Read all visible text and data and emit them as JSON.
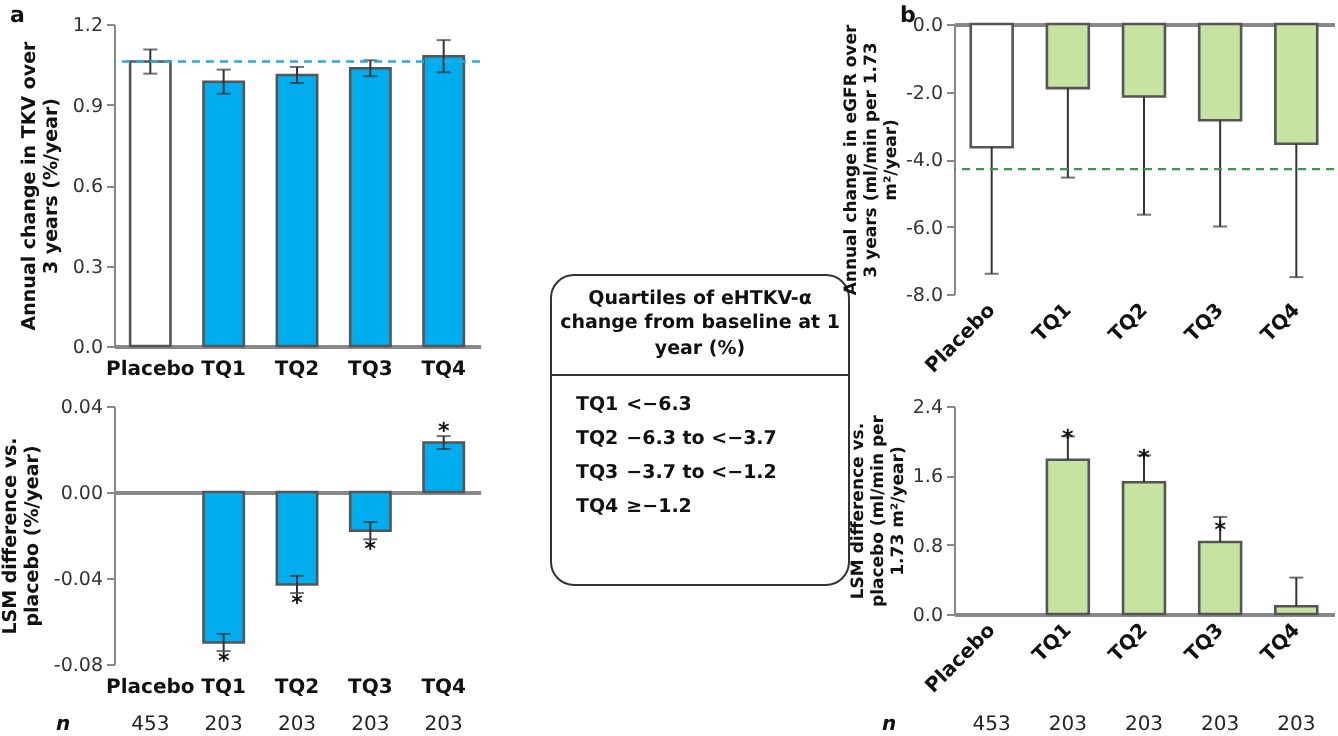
{
  "chart_data": [
    {
      "type": "bar",
      "title": "a",
      "ylabel": "Annual change in TKV over 3 years (%/year)",
      "categories": [
        "Placebo",
        "TQ1",
        "TQ2",
        "TQ3",
        "TQ4"
      ],
      "values": [
        1.06,
        0.985,
        1.01,
        1.035,
        1.08
      ],
      "colors": [
        "#ffffff",
        "#00aeef",
        "#00aeef",
        "#00aeef",
        "#00aeef"
      ],
      "errors": [
        0.045,
        0.045,
        0.03,
        0.03,
        0.06
      ],
      "ylim": [
        0,
        1.2
      ],
      "yticks": [
        {
          "value": 0,
          "label": "0.0"
        },
        0.3,
        0.6,
        0.9,
        1.2
      ],
      "ref_lines": [
        {
          "axis": "y",
          "value": 1.06,
          "color": "#29abe2",
          "line_style": "dashed"
        }
      ]
    },
    {
      "type": "bar",
      "ylabel": "LSM difference vs. placebo (%/year)",
      "categories": [
        "Placebo",
        "TQ1",
        "TQ2",
        "TQ3",
        "TQ4"
      ],
      "values": [
        0,
        -0.07,
        -0.043,
        -0.018,
        0.023
      ],
      "colors": [
        "#ffffff",
        "#00aeef",
        "#00aeef",
        "#00aeef",
        "#00aeef"
      ],
      "errors": [
        null,
        0.004,
        0.004,
        0.004,
        0.003
      ],
      "ylim": [
        -0.08,
        0.04
      ],
      "yticks": [
        -0.08,
        -0.04,
        {
          "value": 0,
          "label": "0.00"
        },
        0.04
      ],
      "annotations": [
        {
          "text": "*",
          "x": "TQ1",
          "y": -0.077
        },
        {
          "text": "*",
          "x": "TQ2",
          "y": -0.05
        },
        {
          "text": "*",
          "x": "TQ3",
          "y": -0.025
        },
        {
          "text": "*",
          "x": "TQ4",
          "y": 0.03
        },
        "n",
        "453",
        "203",
        "203",
        "203",
        "203"
      ]
    },
    {
      "type": "other",
      "title": "Quartiles of eHTKV-α change from baseline at 1 year (%)",
      "categories": [
        "TQ1",
        "TQ2",
        "TQ3",
        "TQ4"
      ],
      "annotations": [
        "<−6.3",
        "−6.3 to <−3.7",
        "−3.7 to <−1.2",
        "≥−1.2"
      ]
    },
    {
      "type": "bar",
      "title": "b",
      "ylabel": "Annual change in eGFR over 3 years (ml/min per 1.73 m²/year)",
      "categories": [
        "Placebo",
        "TQ1",
        "TQ2",
        "TQ3",
        "TQ4"
      ],
      "values": [
        -3.65,
        -1.9,
        -2.15,
        -2.85,
        -3.55
      ],
      "colors": [
        "#ffffff",
        "#c6e3a2",
        "#c6e3a2",
        "#c6e3a2",
        "#c6e3a2"
      ],
      "errors": [
        [
          -7.4,
          -3.65
        ],
        [
          -4.55,
          -1.9
        ],
        [
          -5.65,
          -2.15
        ],
        [
          -6.0,
          -2.85
        ],
        [
          -7.5,
          -3.55
        ]
      ],
      "ylim": [
        -8,
        0
      ],
      "yticks": [
        {
          "value": -8,
          "label": "-8.0"
        },
        {
          "value": -6,
          "label": "-6.0"
        },
        {
          "value": -4,
          "label": "-4.0"
        },
        {
          "value": -2,
          "label": "-2.0"
        },
        {
          "value": 0,
          "label": "0.0"
        }
      ],
      "ref_lines": [
        {
          "axis": "y",
          "value": -4.3,
          "color": "#2e9e4a",
          "line_style": "dashed"
        }
      ]
    },
    {
      "type": "bar",
      "ylabel": "LSM difference vs. placebo (ml/min per 1.73 m²/year)",
      "categories": [
        "Placebo",
        "TQ1",
        "TQ2",
        "TQ3",
        "TQ4"
      ],
      "values": [
        0,
        1.78,
        1.52,
        0.83,
        0.09
      ],
      "colors": [
        "#ffffff",
        "#c6e3a2",
        "#c6e3a2",
        "#c6e3a2",
        "#c6e3a2"
      ],
      "errors": [
        null,
        [
          1.78,
          2.05
        ],
        [
          1.52,
          1.83
        ],
        [
          0.83,
          1.12
        ],
        [
          0.09,
          0.42
        ]
      ],
      "ylim": [
        0,
        2.4
      ],
      "yticks": [
        {
          "value": 0,
          "label": "0.0"
        },
        {
          "value": 0.8,
          "label": "0.8"
        },
        {
          "value": 1.6,
          "label": "1.6"
        },
        {
          "value": 2.4,
          "label": "2.4"
        }
      ],
      "annotations": [
        {
          "text": "*",
          "x": "TQ1",
          "y": 2.07
        },
        {
          "text": "*",
          "x": "TQ2",
          "y": 1.84
        },
        {
          "text": "*",
          "x": "TQ3",
          "y": 1.0
        },
        "n",
        "453",
        "203",
        "203",
        "203",
        "203"
      ]
    }
  ]
}
